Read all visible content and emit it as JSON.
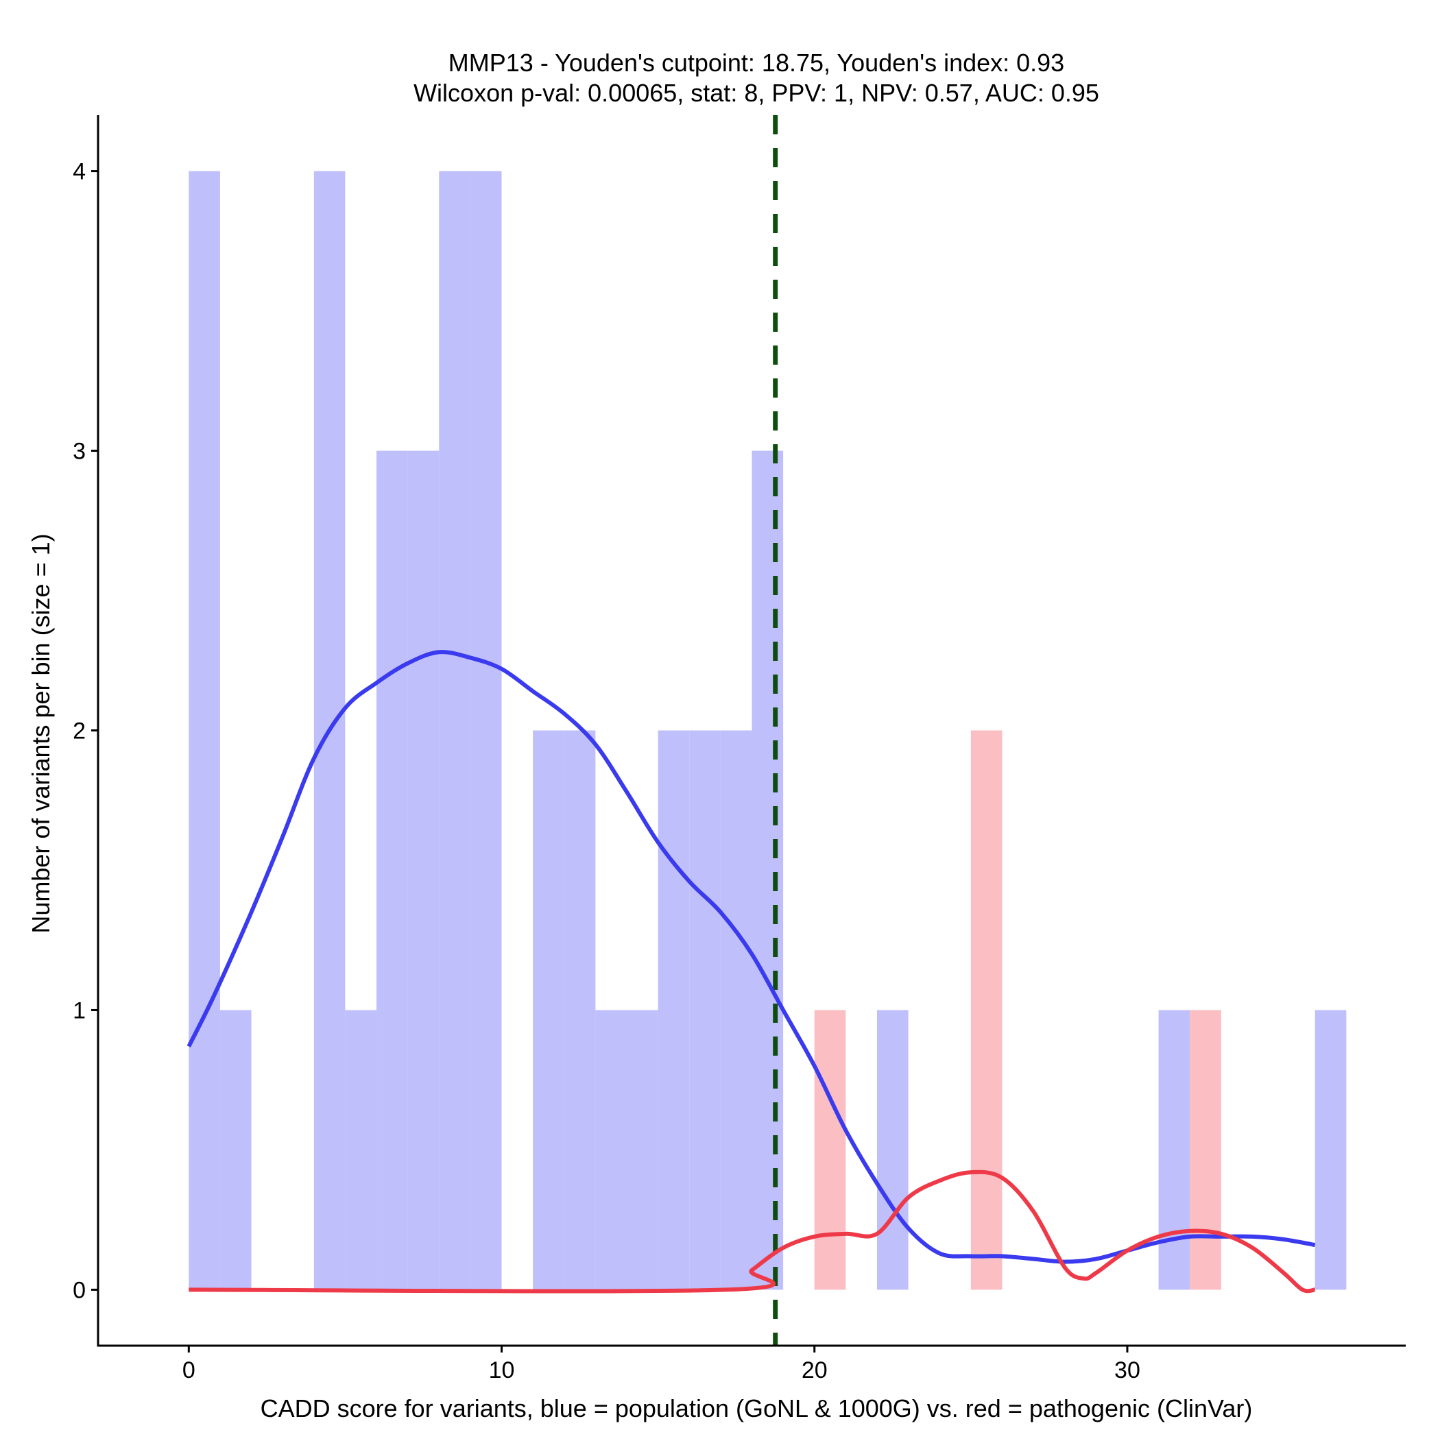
{
  "chart_data": {
    "type": "bar",
    "title_line1": "MMP13 - Youden's cutpoint: 18.75, Youden's index: 0.93",
    "title_line2": "Wilcoxon p-val: 0.00065, stat: 8, PPV: 1, NPV: 0.57, AUC: 0.95",
    "xlabel": "CADD score for variants, blue = population (GoNL & 1000G) vs. red = pathogenic (ClinVar)",
    "ylabel": "Number of variants per bin (size = 1)",
    "xlim": [
      -2.9,
      38.9
    ],
    "ylim": [
      -0.2,
      4.2
    ],
    "x_ticks": [
      0,
      10,
      20,
      30
    ],
    "x_tick_labels": [
      "0",
      "10",
      "20",
      "30"
    ],
    "y_ticks": [
      0,
      1,
      2,
      3,
      4
    ],
    "y_tick_labels": [
      "0",
      "1",
      "2",
      "3",
      "4"
    ],
    "bin_width": 1,
    "cutpoint": 18.75,
    "colors": {
      "population_bar": "#bfbffb",
      "pathogenic_bar": "#fbbfc3",
      "population_line": "#3a3aee",
      "pathogenic_line": "#ee3a48",
      "cutpoint_line": "#0f4d0f",
      "axis": "#000000"
    },
    "series": [
      {
        "name": "population (GoNL & 1000G)",
        "bins": [
          {
            "x0": 0,
            "count": 4
          },
          {
            "x0": 1,
            "count": 1
          },
          {
            "x0": 4,
            "count": 4
          },
          {
            "x0": 5,
            "count": 1
          },
          {
            "x0": 6,
            "count": 3
          },
          {
            "x0": 7,
            "count": 3
          },
          {
            "x0": 8,
            "count": 4
          },
          {
            "x0": 9,
            "count": 4
          },
          {
            "x0": 11,
            "count": 2
          },
          {
            "x0": 12,
            "count": 2
          },
          {
            "x0": 13,
            "count": 1
          },
          {
            "x0": 14,
            "count": 1
          },
          {
            "x0": 15,
            "count": 2
          },
          {
            "x0": 16,
            "count": 2
          },
          {
            "x0": 17,
            "count": 2
          },
          {
            "x0": 18,
            "count": 3
          },
          {
            "x0": 22,
            "count": 1
          },
          {
            "x0": 31,
            "count": 1
          },
          {
            "x0": 36,
            "count": 1
          }
        ],
        "density": {
          "x": [
            0,
            0.8,
            2,
            3,
            4,
            5,
            6,
            7,
            8,
            9,
            10,
            11,
            12,
            13,
            14,
            15,
            16,
            17,
            18,
            19,
            20,
            21,
            22,
            23,
            24,
            25,
            26,
            27,
            28,
            29,
            30,
            31,
            32,
            33,
            34,
            35,
            36
          ],
          "y": [
            0.87,
            1.05,
            1.35,
            1.62,
            1.9,
            2.08,
            2.17,
            2.24,
            2.28,
            2.26,
            2.22,
            2.14,
            2.06,
            1.95,
            1.78,
            1.6,
            1.46,
            1.35,
            1.2,
            1.0,
            0.8,
            0.57,
            0.38,
            0.22,
            0.13,
            0.12,
            0.12,
            0.11,
            0.1,
            0.11,
            0.14,
            0.17,
            0.19,
            0.19,
            0.19,
            0.18,
            0.16
          ]
        }
      },
      {
        "name": "pathogenic (ClinVar)",
        "bins": [
          {
            "x0": 20,
            "count": 1
          },
          {
            "x0": 25,
            "count": 2
          },
          {
            "x0": 32,
            "count": 1
          }
        ],
        "density": {
          "x": [
            0,
            17.2,
            18,
            19,
            20,
            21,
            22,
            23,
            24,
            25,
            26,
            27,
            28,
            28.6,
            29,
            30,
            31,
            32,
            33,
            34,
            35,
            35.6,
            36
          ],
          "y": [
            0,
            0,
            0.07,
            0.15,
            0.19,
            0.2,
            0.2,
            0.33,
            0.39,
            0.42,
            0.4,
            0.28,
            0.08,
            0.04,
            0.06,
            0.14,
            0.19,
            0.21,
            0.2,
            0.15,
            0.06,
            0.0,
            0.0
          ]
        }
      }
    ]
  }
}
